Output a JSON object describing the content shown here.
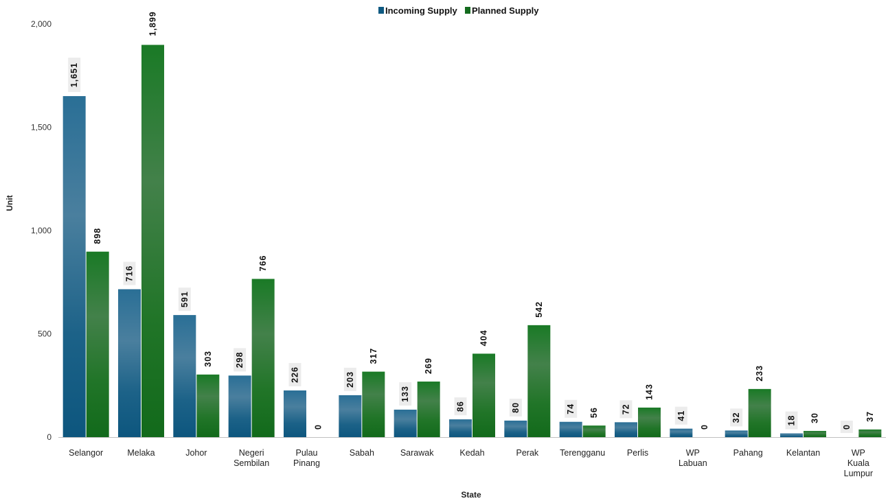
{
  "chart_data": {
    "type": "bar",
    "title": "",
    "xlabel": "State",
    "ylabel": "Unit",
    "ylim": [
      0,
      2000
    ],
    "yticks": [
      0,
      500,
      1000,
      1500,
      2000
    ],
    "ytick_labels": [
      "0",
      "500",
      "1,000",
      "1,500",
      "2,000"
    ],
    "grid": false,
    "legend_position": "top-center",
    "categories": [
      [
        "Selangor"
      ],
      [
        "Melaka"
      ],
      [
        "Johor"
      ],
      [
        "Negeri",
        "Sembilan"
      ],
      [
        "Pulau",
        "Pinang"
      ],
      [
        "Sabah"
      ],
      [
        "Sarawak"
      ],
      [
        "Kedah"
      ],
      [
        "Perak"
      ],
      [
        "Terengganu"
      ],
      [
        "Perlis"
      ],
      [
        "WP",
        "Labuan"
      ],
      [
        "Pahang"
      ],
      [
        "Kelantan"
      ],
      [
        "WP",
        "Kuala",
        "Lumpur"
      ]
    ],
    "series": [
      {
        "name": "Incoming Supply",
        "color": "#0f5a82",
        "values": [
          1651,
          716,
          591,
          298,
          226,
          203,
          133,
          86,
          80,
          74,
          72,
          41,
          32,
          18,
          0
        ],
        "labels": [
          "1,651",
          "716",
          "591",
          "298",
          "226",
          "203",
          "133",
          "86",
          "80",
          "74",
          "72",
          "41",
          "32",
          "18",
          "0"
        ]
      },
      {
        "name": "Planned Supply",
        "color": "#146b1e",
        "values": [
          898,
          1899,
          303,
          766,
          0,
          317,
          269,
          404,
          542,
          56,
          143,
          0,
          233,
          30,
          37
        ],
        "labels": [
          "898",
          "1,899",
          "303",
          "766",
          "0",
          "317",
          "269",
          "404",
          "542",
          "56",
          "143",
          "0",
          "233",
          "30",
          "37"
        ]
      }
    ]
  }
}
